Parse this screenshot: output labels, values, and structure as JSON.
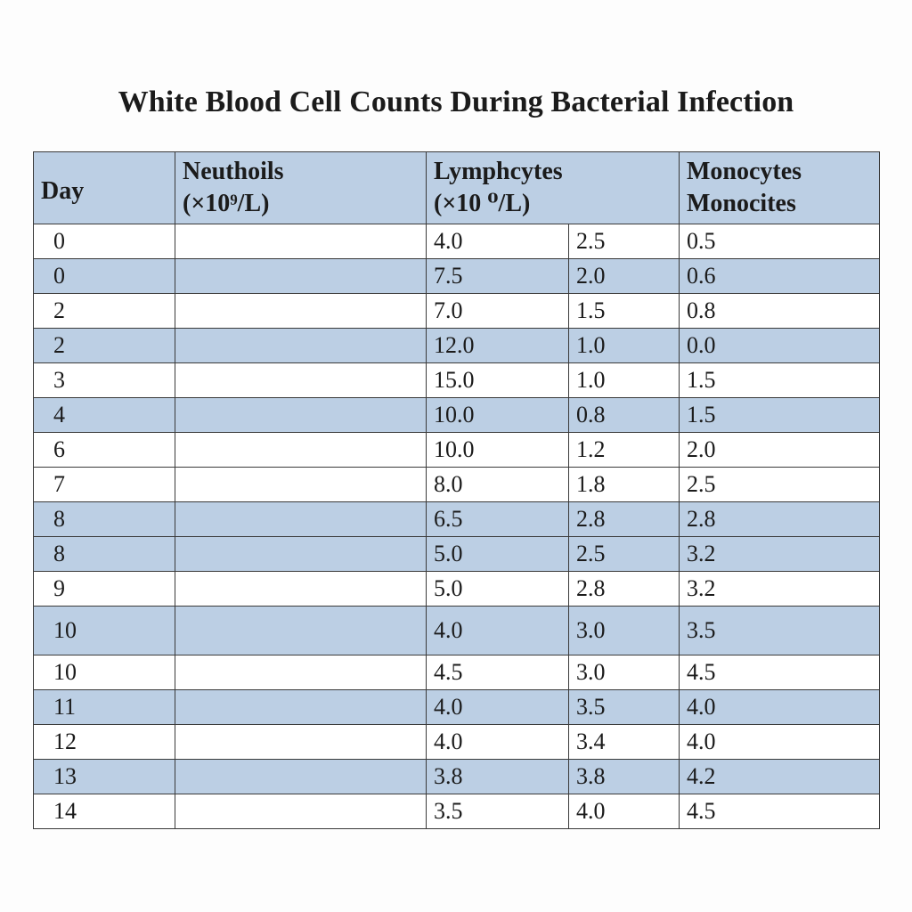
{
  "title": "White Blood Cell Counts During Bacterial Infection",
  "table": {
    "headers": {
      "day": "Day",
      "neutrophils": [
        "Neuthoils",
        "(×10⁹/L)"
      ],
      "lymphocytes": [
        "Lymphcytes",
        "(×10 ⁰/L)"
      ],
      "monocytes": [
        "Monocytes",
        "Monocites"
      ]
    },
    "rows": [
      {
        "day": "0",
        "neutrophils": "",
        "lymph_a": "4.0",
        "lymph_b": "2.5",
        "monocytes": "0.5"
      },
      {
        "day": "0",
        "neutrophils": "",
        "lymph_a": "7.5",
        "lymph_b": "2.0",
        "monocytes": "0.6"
      },
      {
        "day": "2",
        "neutrophils": "",
        "lymph_a": "7.0",
        "lymph_b": "1.5",
        "monocytes": "0.8"
      },
      {
        "day": "2",
        "neutrophils": "",
        "lymph_a": "12.0",
        "lymph_b": "1.0",
        "monocytes": "0.0"
      },
      {
        "day": "3",
        "neutrophils": "",
        "lymph_a": "15.0",
        "lymph_b": "1.0",
        "monocytes": "1.5"
      },
      {
        "day": "4",
        "neutrophils": "",
        "lymph_a": "10.0",
        "lymph_b": "0.8",
        "monocytes": "1.5"
      },
      {
        "day": "6",
        "neutrophils": "",
        "lymph_a": "10.0",
        "lymph_b": "1.2",
        "monocytes": "2.0"
      },
      {
        "day": "7",
        "neutrophils": "",
        "lymph_a": "8.0",
        "lymph_b": "1.8",
        "monocytes": "2.5"
      },
      {
        "day": "8",
        "neutrophils": "",
        "lymph_a": "6.5",
        "lymph_b": "2.8",
        "monocytes": "2.8"
      },
      {
        "day": "8",
        "neutrophils": "",
        "lymph_a": "5.0",
        "lymph_b": "2.5",
        "monocytes": "3.2"
      },
      {
        "day": "9",
        "neutrophils": "",
        "lymph_a": "5.0",
        "lymph_b": "2.8",
        "monocytes": "3.2"
      },
      {
        "day": "10",
        "neutrophils": "",
        "lymph_a": "4.0",
        "lymph_b": "3.0",
        "monocytes": "3.5"
      },
      {
        "day": "10",
        "neutrophils": "",
        "lymph_a": "4.5",
        "lymph_b": "3.0",
        "monocytes": "4.5"
      },
      {
        "day": "11",
        "neutrophils": "",
        "lymph_a": "4.0",
        "lymph_b": "3.5",
        "monocytes": "4.0"
      },
      {
        "day": "12",
        "neutrophils": "",
        "lymph_a": "4.0",
        "lymph_b": "3.4",
        "monocytes": "4.0"
      },
      {
        "day": "13",
        "neutrophils": "",
        "lymph_a": "3.8",
        "lymph_b": "3.8",
        "monocytes": "4.2"
      },
      {
        "day": "14",
        "neutrophils": "",
        "lymph_a": "3.5",
        "lymph_b": "4.0",
        "monocytes": "4.5"
      }
    ]
  },
  "colors": {
    "stripe_blue": "#bccfe4",
    "header_blue": "#bccfe4",
    "white": "#ffffff",
    "border": "#3a3a3a"
  }
}
